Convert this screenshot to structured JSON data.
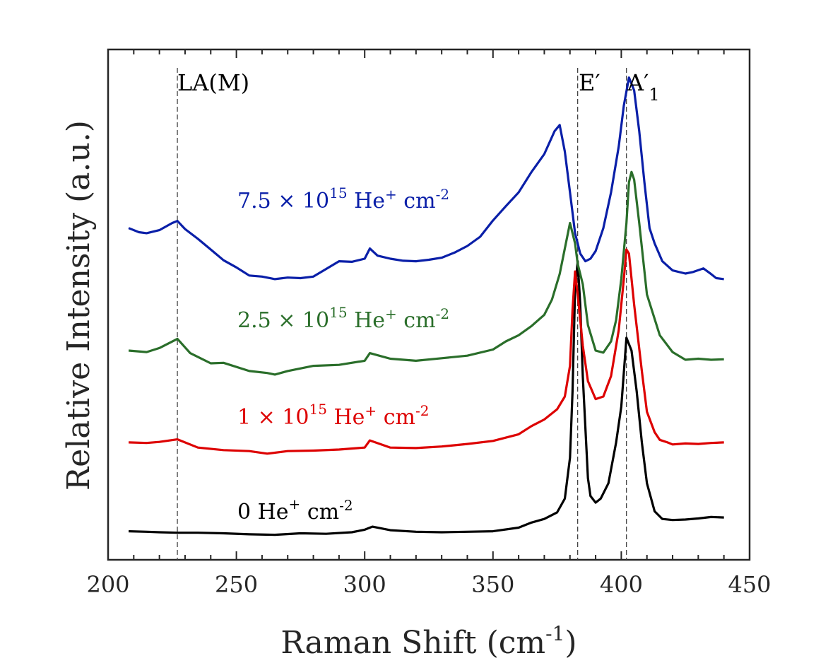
{
  "chart_data": {
    "type": "line",
    "title": "",
    "xlabel": "Raman Shift (cm",
    "xlabel_sup": "-1",
    "xlabel_end": ")",
    "ylabel": "Relative Intensity (a.u.)",
    "xlim": [
      200,
      450
    ],
    "ylim": [
      0,
      100
    ],
    "x_ticks": [
      200,
      250,
      300,
      350,
      400,
      450
    ],
    "y_ticks_shown": false,
    "grid": false,
    "legend": "inline labels",
    "reference_lines": [
      {
        "name": "LA(M)",
        "x": 227,
        "label": "LA(M)"
      },
      {
        "name": "E-prime",
        "x": 383,
        "label": "E′"
      },
      {
        "name": "A1-prime",
        "x": 402,
        "label": "A′",
        "label_sub": "1"
      }
    ],
    "series": [
      {
        "name": "0 He+ cm-2",
        "label_parts": [
          "0 He",
          "+",
          " cm",
          "-2"
        ],
        "color": "#000000",
        "x": [
          208,
          215,
          220,
          227,
          235,
          245,
          255,
          265,
          275,
          285,
          295,
          300,
          303,
          310,
          320,
          330,
          340,
          350,
          360,
          365,
          370,
          375,
          378,
          380,
          381,
          382,
          383,
          384,
          385,
          387,
          388,
          390,
          392,
          395,
          398,
          400,
          402,
          404,
          406,
          408,
          410,
          413,
          416,
          420,
          425,
          430,
          435,
          440
        ],
        "y": [
          5.6,
          5.5,
          5.4,
          5.3,
          5.3,
          5.2,
          5.0,
          4.9,
          5.2,
          5.1,
          5.4,
          5.9,
          6.5,
          5.8,
          5.5,
          5.4,
          5.5,
          5.6,
          6.3,
          7.3,
          8.0,
          9.3,
          12.0,
          20.0,
          33.0,
          53.0,
          58.5,
          50.0,
          36.0,
          16.0,
          12.5,
          11.2,
          12.0,
          15.0,
          23.0,
          30.0,
          43.5,
          41.0,
          33.0,
          23.0,
          15.0,
          9.5,
          8.0,
          7.8,
          7.9,
          8.1,
          8.4,
          8.3
        ]
      },
      {
        "name": "1 x 10^15 He+ cm-2",
        "label_parts": [
          "1 × 10",
          "15",
          " He",
          "+",
          " cm",
          "-2"
        ],
        "color": "#dd0000",
        "x": [
          208,
          215,
          220,
          227,
          235,
          245,
          255,
          262,
          270,
          280,
          290,
          300,
          302,
          310,
          320,
          330,
          340,
          350,
          360,
          365,
          370,
          375,
          378,
          380,
          381,
          382,
          383,
          385,
          387,
          390,
          393,
          396,
          399,
          401,
          402,
          403,
          405,
          408,
          410,
          413,
          415,
          418,
          420,
          425,
          430,
          435,
          440
        ],
        "y": [
          23.0,
          22.9,
          23.1,
          23.6,
          22.0,
          21.5,
          21.3,
          20.8,
          21.3,
          21.4,
          21.6,
          22.0,
          23.4,
          22.0,
          21.9,
          22.2,
          22.7,
          23.3,
          24.6,
          26.2,
          27.5,
          29.5,
          32.0,
          38.0,
          49.0,
          56.5,
          52.0,
          42.0,
          35.0,
          31.5,
          32.0,
          36.0,
          45.0,
          55.0,
          60.8,
          60.0,
          50.0,
          37.0,
          29.0,
          25.0,
          23.5,
          23.0,
          22.6,
          22.8,
          22.7,
          22.9,
          23.0
        ]
      },
      {
        "name": "2.5 x 10^15 He+ cm-2",
        "label_parts": [
          "2.5 × 10",
          "15",
          " He",
          "+",
          " cm",
          "-2"
        ],
        "color": "#2a6e2a",
        "x": [
          208,
          215,
          220,
          227,
          232,
          240,
          245,
          255,
          262,
          265,
          270,
          280,
          290,
          300,
          302,
          310,
          320,
          330,
          340,
          350,
          355,
          360,
          365,
          370,
          373,
          376,
          378,
          380,
          382,
          383,
          385,
          387,
          390,
          393,
          396,
          398,
          400,
          402,
          403,
          404,
          405,
          407,
          410,
          415,
          420,
          425,
          430,
          435,
          440
        ],
        "y": [
          41.0,
          40.7,
          41.5,
          43.3,
          40.5,
          38.5,
          38.6,
          37.0,
          36.6,
          36.3,
          37.0,
          38.0,
          38.2,
          39.0,
          40.5,
          39.4,
          39.0,
          39.5,
          40.0,
          41.2,
          42.8,
          44.0,
          45.8,
          48.0,
          51.0,
          56.0,
          61.0,
          66.0,
          62.0,
          58.0,
          54.0,
          46.0,
          41.0,
          40.6,
          42.8,
          47.0,
          55.0,
          66.0,
          74.0,
          76.0,
          74.5,
          66.0,
          52.0,
          44.0,
          40.7,
          39.2,
          39.4,
          39.2,
          39.3
        ]
      },
      {
        "name": "7.5 x 10^15 He+ cm-2",
        "label_parts": [
          "7.5 × 10",
          "15",
          " He",
          "+",
          " cm",
          "-2"
        ],
        "color": "#0a1fa8",
        "x": [
          208,
          212,
          215,
          220,
          225,
          227,
          230,
          235,
          240,
          245,
          250,
          255,
          260,
          265,
          270,
          275,
          280,
          285,
          290,
          295,
          300,
          302,
          305,
          310,
          315,
          320,
          325,
          330,
          335,
          340,
          345,
          350,
          355,
          360,
          365,
          370,
          374,
          376,
          378,
          380,
          382,
          384,
          386,
          388,
          390,
          393,
          396,
          399,
          401,
          403,
          405,
          407,
          409,
          411,
          413,
          416,
          420,
          425,
          428,
          432,
          435,
          437,
          440
        ],
        "y": [
          65.0,
          64.2,
          64.0,
          64.6,
          66.0,
          66.4,
          64.8,
          62.9,
          60.8,
          58.7,
          57.3,
          55.7,
          55.5,
          55.0,
          55.3,
          55.2,
          55.5,
          57.0,
          58.5,
          58.4,
          59.0,
          61.0,
          59.6,
          59.0,
          58.6,
          58.5,
          58.8,
          59.2,
          60.2,
          61.5,
          63.3,
          66.5,
          69.3,
          72.0,
          76.0,
          79.5,
          84.0,
          85.2,
          80.0,
          72.0,
          64.0,
          60.0,
          58.5,
          59.0,
          60.5,
          65.0,
          72.0,
          81.0,
          89.0,
          94.5,
          92.0,
          84.0,
          74.0,
          65.0,
          62.0,
          58.5,
          56.7,
          56.1,
          56.4,
          57.1,
          56.0,
          55.2,
          55.0
        ]
      }
    ],
    "series_label_positions": "left of peaks, above each trace"
  }
}
